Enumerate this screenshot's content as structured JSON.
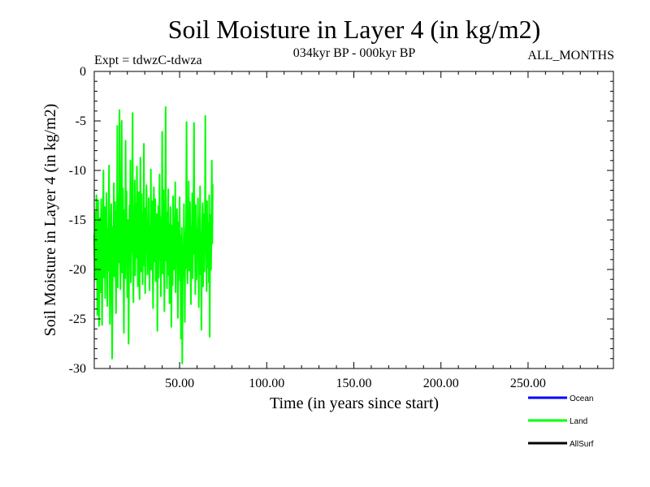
{
  "chart_data": {
    "type": "line",
    "title": "Soil Moisture in Layer 4 (in kg/m2)",
    "subtitle": "034kyr BP - 000kyr BP",
    "expt_label": "Expt = tdwzC-tdwza",
    "period_label": "ALL_MONTHS",
    "xlabel": "Time (in years since start)",
    "ylabel": "Soil Moisture in Layer 4 (in kg/m2)",
    "xlim": [
      1,
      299
    ],
    "ylim": [
      -30,
      0
    ],
    "x_ticks": [
      50,
      100,
      150,
      200,
      250
    ],
    "x_tick_labels": [
      "50.00",
      "100.00",
      "150.00",
      "200.00",
      "250.00"
    ],
    "y_ticks": [
      0,
      -5,
      -10,
      -15,
      -20,
      -25,
      -30
    ],
    "y_tick_labels": [
      "0",
      "-5",
      "-10",
      "-15",
      "-20",
      "-25",
      "-30"
    ],
    "grid": false,
    "legend_position": "bottom-right",
    "series": [
      {
        "name": "Ocean",
        "color": "#0000ff",
        "values": []
      },
      {
        "name": "Land",
        "color": "#00ff00",
        "x_start": 1,
        "x_step": 0.25,
        "approx_mean": -16,
        "approx_min": -29.5,
        "approx_max": -3.5,
        "values": [
          -16.5,
          -19.8,
          -14.2,
          -21.0,
          -17.3,
          -12.5,
          -18.9,
          -24.6,
          -15.1,
          -13.0,
          -20.4,
          -25.7,
          -17.6,
          -14.8,
          -22.3,
          -18.0,
          -12.9,
          -16.7,
          -25.6,
          -19.2,
          -15.5,
          -10.0,
          -20.8,
          -17.1,
          -13.7,
          -22.9,
          -16.2,
          -19.5,
          -12.3,
          -18.4,
          -23.7,
          -15.9,
          -20.1,
          -14.5,
          -9.5,
          -17.8,
          -25.5,
          -21.4,
          -16.0,
          -13.4,
          -19.0,
          -29.0,
          -22.6,
          -15.7,
          -18.6,
          -11.3,
          -20.7,
          -16.9,
          -13.2,
          -19.7,
          -24.4,
          -14.1,
          -17.2,
          -5.5,
          -21.8,
          -16.4,
          -12.7,
          -19.3,
          -3.9,
          -15.3,
          -22.0,
          -17.9,
          -13.9,
          -5.0,
          -20.3,
          -15.8,
          -11.8,
          -18.5,
          -26.4,
          -16.1,
          -14.0,
          -20.9,
          -7.0,
          -17.4,
          -12.1,
          -19.6,
          -22.8,
          -15.0,
          -17.7,
          -27.5,
          -19.1,
          -13.5,
          -16.8,
          -9.0,
          -21.3,
          -15.6,
          -18.2,
          -12.6,
          -4.2,
          -19.9,
          -23.3,
          -14.6,
          -17.0,
          -11.0,
          -20.6,
          -16.3,
          -13.3,
          -18.8,
          -9.6,
          -15.2,
          -21.7,
          -17.5,
          -12.2,
          -19.4,
          -23.0,
          -15.4,
          -8.7,
          -20.2,
          -16.6,
          -12.4,
          -18.1,
          -21.5,
          -14.3,
          -17.7,
          -7.3,
          -19.6,
          -15.1,
          -22.4,
          -13.8,
          -18.3,
          -11.5,
          -16.5,
          -20.5,
          -14.9,
          -17.2,
          -12.8,
          -19.8,
          -22.1,
          -15.7,
          -17.9,
          -9.9,
          -20.0,
          -16.2,
          -13.1,
          -18.7,
          -23.9,
          -15.0,
          -11.7,
          -19.2,
          -17.0,
          -12.9,
          -21.2,
          -16.0,
          -19.3,
          -14.4,
          -26.2,
          -17.6,
          -13.6,
          -20.8,
          -16.9,
          -10.4,
          -19.0,
          -15.3,
          -22.7,
          -14.7,
          -17.4,
          -6.1,
          -20.4,
          -16.7,
          -12.0,
          -18.6,
          -24.2,
          -15.9,
          -13.0,
          -3.6,
          -19.1,
          -16.1,
          -21.9,
          -14.2,
          -17.3,
          -11.9,
          -20.6,
          -15.5,
          -23.4,
          -18.0,
          -13.7,
          -16.4,
          -25.8,
          -19.7,
          -15.6,
          -21.6,
          -12.6,
          -17.8,
          -20.0,
          -14.8,
          -18.5,
          -11.2,
          -22.3,
          -16.8,
          -19.4,
          -13.9,
          -17.1,
          -24.9,
          -20.3,
          -15.2,
          -18.9,
          -12.7,
          -21.1,
          -16.6,
          -27.0,
          -19.6,
          -15.8,
          -29.5,
          -22.0,
          -17.5,
          -20.7,
          -13.4,
          -18.2,
          -25.3,
          -16.3,
          -19.9,
          -14.1,
          -5.1,
          -17.0,
          -21.4,
          -15.4,
          -18.8,
          -11.1,
          -20.1,
          -16.0,
          -13.2,
          -19.5,
          -23.5,
          -15.7,
          -17.6,
          -12.3,
          -20.9,
          -16.5,
          -14.6,
          -5.2,
          -18.4,
          -15.0,
          -22.5,
          -13.5,
          -17.9,
          -21.0,
          -15.9,
          -19.2,
          -12.8,
          -17.3,
          -23.8,
          -14.9,
          -18.7,
          -11.6,
          -20.5,
          -16.2,
          -26.1,
          -19.0,
          -15.1,
          -13.3,
          -21.7,
          -17.2,
          -14.4,
          -20.2,
          -16.7,
          -4.5,
          -18.3,
          -15.6,
          -22.2,
          -13.1,
          -17.7,
          -19.8,
          -15.3,
          -21.3,
          -12.5,
          -26.8,
          -18.1,
          -14.5,
          -20.0,
          -16.9,
          -9.0,
          -17.4,
          -11.4
        ]
      },
      {
        "name": "AllSurf",
        "color": "#000000",
        "values": []
      }
    ]
  }
}
